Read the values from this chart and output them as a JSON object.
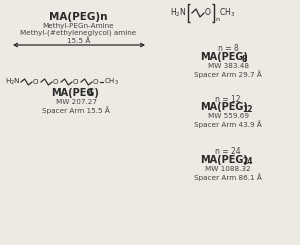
{
  "bg_color": "#ede9e3",
  "title_text": "MA(PEG)n",
  "subtitle1": "Methyl-PEGn-Amine",
  "subtitle2": "Methyl-(#ethyleneglycol) amine",
  "arrow_label": "15.5 Å",
  "peg4_label": "MA(PEG)",
  "peg4_sub": "4",
  "peg4_mw": "MW 207.27",
  "peg4_spacer": "Spacer Arm 15.5 Å",
  "entries": [
    {
      "n": "n = 8",
      "name": "MA(PEG)",
      "sub": "8",
      "mw": "MW 383.48",
      "spacer": "Spacer Arm 29.7 Å"
    },
    {
      "n": "n = 12",
      "name": "MA(PEG)",
      "sub": "12",
      "mw": "MW 559.69",
      "spacer": "Spacer Arm 43.9 Å"
    },
    {
      "n": "n = 24",
      "name": "MA(PEG)",
      "sub": "24",
      "mw": "MW 1088.32",
      "spacer": "Spacer Arm 86.1 Å"
    }
  ],
  "line_color": "#2a2a2a",
  "text_color": "#2a2a2a",
  "text_color2": "#444444"
}
